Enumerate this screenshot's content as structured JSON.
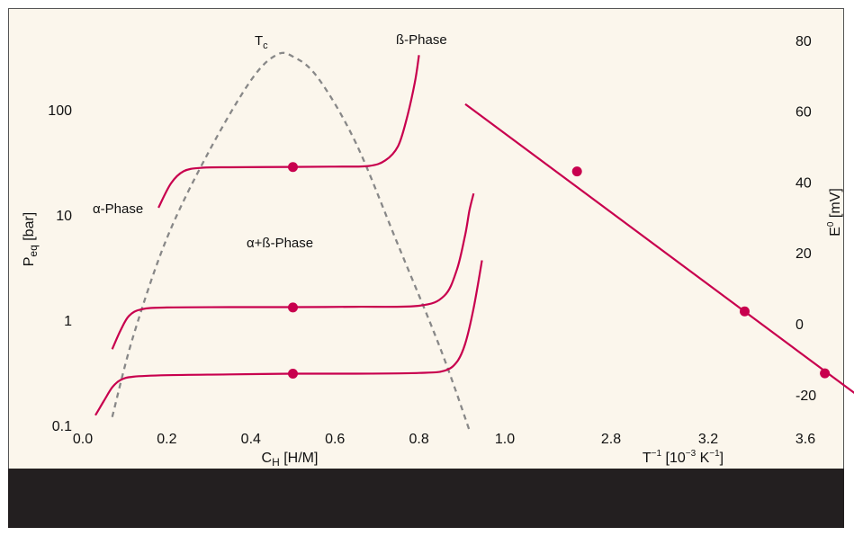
{
  "chart_data": [
    {
      "type": "line",
      "panel": "left",
      "xlabel": "C",
      "xlabel_sub": "H",
      "xlabel_unit": " [H/M]",
      "ylabel": "P",
      "ylabel_sub": "eq",
      "ylabel_unit": " [bar]",
      "y_scale": "log",
      "xlim": [
        -0.05,
        1.02
      ],
      "ylim": [
        0.1,
        500
      ],
      "x_ticks": [
        "0.0",
        "0.2",
        "0.4",
        "0.6",
        "0.8",
        "1.0"
      ],
      "x_tick_values": [
        0.0,
        0.2,
        0.4,
        0.6,
        0.8,
        1.0
      ],
      "y_ticks": [
        "100",
        "10",
        "1",
        "0.1"
      ],
      "y_tick_values": [
        100,
        10,
        1,
        0.1
      ],
      "annotations": {
        "tc_main": "T",
        "tc_sub": "c",
        "beta_phase": "ß-Phase",
        "alpha_phase": "α-Phase",
        "mixed_phase": "α+ß-Phase"
      },
      "series": [
        {
          "x": [
            0.18,
            0.21,
            0.24,
            0.28,
            0.35,
            0.5,
            0.6,
            0.68,
            0.72,
            0.75,
            0.77,
            0.79,
            0.8
          ],
          "y": [
            11.7,
            20,
            26,
            28,
            28.4,
            28.6,
            28.8,
            29.2,
            33,
            45,
            80,
            180,
            330
          ]
        },
        {
          "x": [
            0.07,
            0.09,
            0.11,
            0.14,
            0.2,
            0.35,
            0.5,
            0.65,
            0.8,
            0.86,
            0.89,
            0.91,
            0.92,
            0.93
          ],
          "y": [
            0.53,
            0.8,
            1.1,
            1.27,
            1.32,
            1.33,
            1.33,
            1.34,
            1.37,
            1.7,
            3,
            6.5,
            11,
            16
          ]
        },
        {
          "x": [
            0.03,
            0.05,
            0.07,
            0.09,
            0.12,
            0.2,
            0.35,
            0.5,
            0.65,
            0.8,
            0.86,
            0.89,
            0.91,
            0.93,
            0.95
          ],
          "y": [
            0.125,
            0.17,
            0.23,
            0.27,
            0.29,
            0.3,
            0.305,
            0.31,
            0.31,
            0.315,
            0.33,
            0.4,
            0.6,
            1.3,
            3.7
          ]
        }
      ],
      "markers": {
        "x": [
          0.5,
          0.5,
          0.5
        ],
        "y": [
          28.5,
          1.32,
          0.31
        ]
      },
      "dashed_curve": {
        "x": [
          0.07,
          0.12,
          0.2,
          0.3,
          0.4,
          0.46,
          0.5,
          0.56,
          0.65,
          0.75,
          0.85,
          0.92
        ],
        "y": [
          0.12,
          0.7,
          6,
          40,
          190,
          330,
          320,
          200,
          48,
          5.2,
          0.55,
          0.09
        ]
      },
      "colors": {
        "series": "#c8004e",
        "dashed": "#888888"
      }
    },
    {
      "type": "line",
      "panel": "right",
      "xlabel": "T",
      "xlabel_sup": "−1",
      "xlabel_unit": "  [10",
      "xlabel_unit_sup": "−3",
      "xlabel_unit_tail": " K",
      "xlabel_unit_tail_sup": "−1",
      "xlabel_close": "]",
      "ylabel": "E",
      "ylabel_sup": "0",
      "ylabel_unit": " [mV]",
      "xlim": [
        2.2,
        3.85
      ],
      "ylim": [
        -30,
        80
      ],
      "x_ticks": [
        "2.8",
        "3.2",
        "3.6"
      ],
      "x_tick_values": [
        2.8,
        3.2,
        3.6
      ],
      "y_ticks": [
        "80",
        "60",
        "40",
        "20",
        "0",
        "-20"
      ],
      "y_tick_values": [
        80,
        60,
        40,
        20,
        0,
        -20
      ],
      "series": [
        {
          "x": [
            2.2,
            3.85
          ],
          "y": [
            62,
            -22
          ]
        }
      ],
      "markers": {
        "x": [
          2.66,
          3.35,
          3.68
        ],
        "y": [
          43,
          3.5,
          -14
        ]
      },
      "colors": {
        "series": "#c8004e"
      },
      "extra_tick": {
        "label": "1.0"
      }
    }
  ]
}
